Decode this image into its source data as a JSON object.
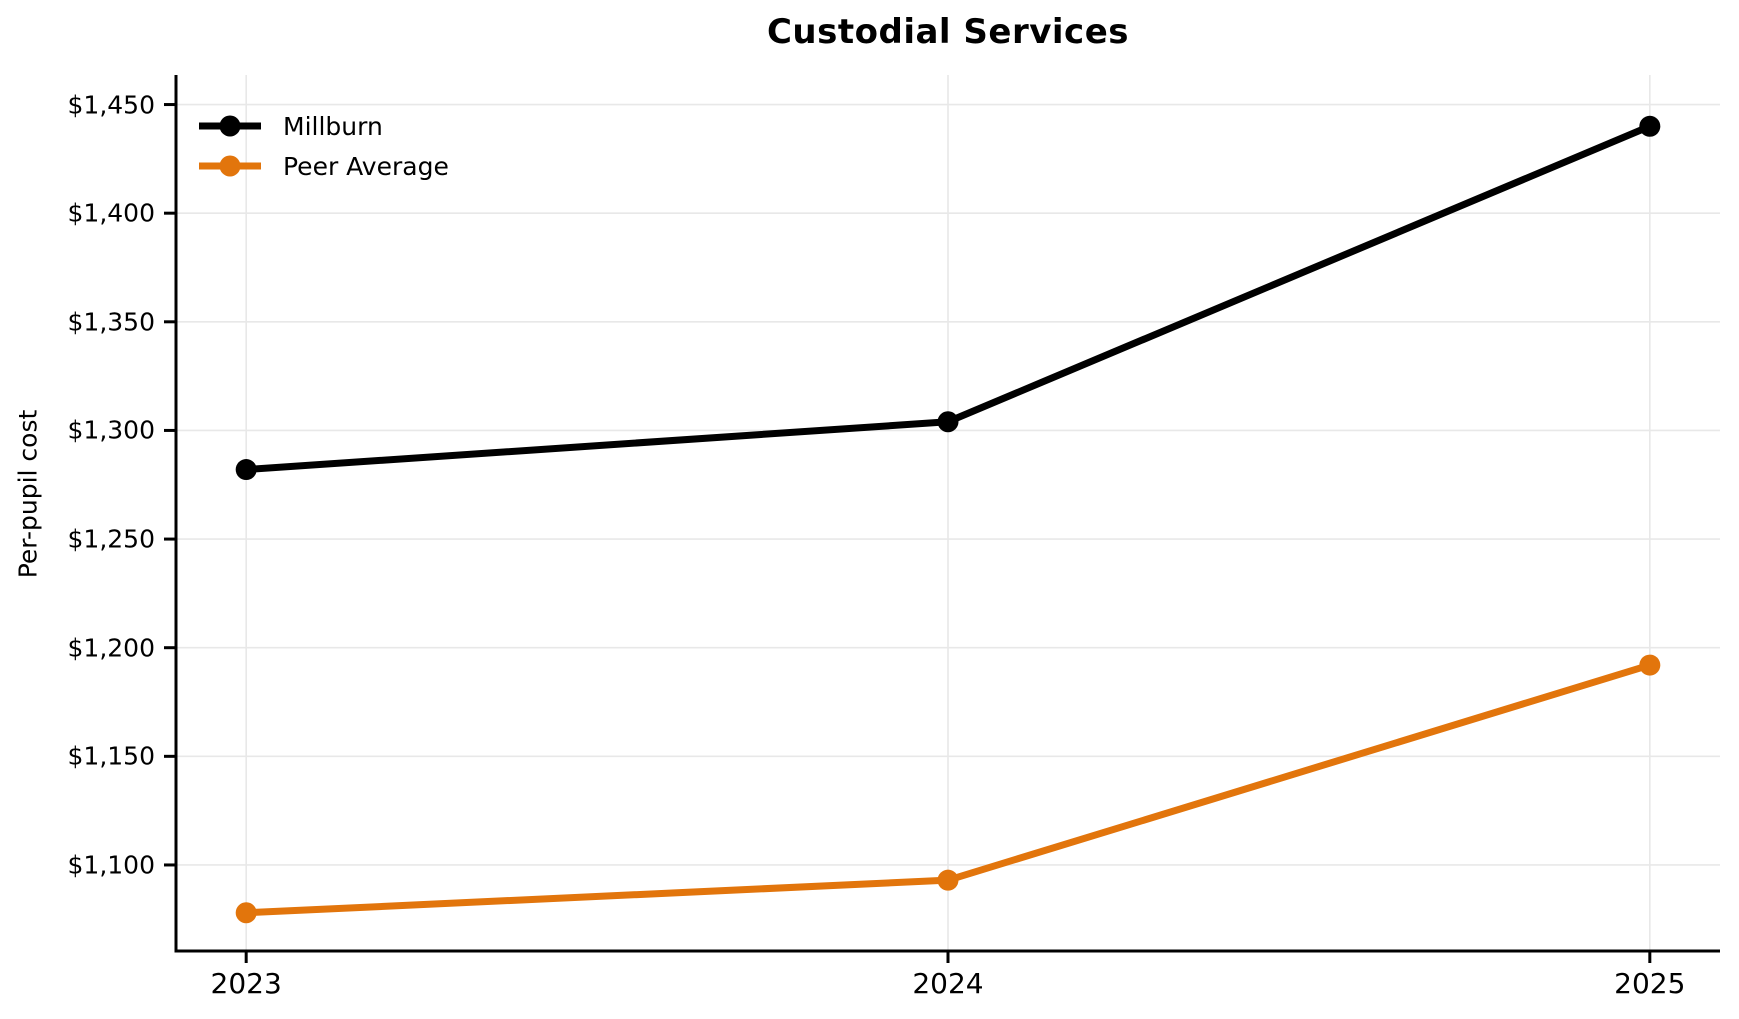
{
  "title": "Custodial Services",
  "chart_data": {
    "type": "line",
    "title": "Custodial Services",
    "xlabel": "",
    "ylabel": "Per-pupil cost",
    "categories": [
      2023,
      2024,
      2025
    ],
    "x_tick_labels": [
      "2023",
      "2024",
      "2025"
    ],
    "series": [
      {
        "name": "Millburn",
        "color": "#000000",
        "values": [
          1282,
          1304,
          1440
        ]
      },
      {
        "name": "Peer Average",
        "color": "#e2750c",
        "values": [
          1078,
          1093,
          1192
        ]
      }
    ],
    "y_ticks": [
      1100,
      1150,
      1200,
      1250,
      1300,
      1350,
      1400,
      1450
    ],
    "y_tick_labels": [
      "$1,100",
      "$1,150",
      "$1,200",
      "$1,250",
      "$1,300",
      "$1,350",
      "$1,400",
      "$1,450"
    ],
    "ylim": [
      1060.4,
      1463.6
    ],
    "xlim": [
      2022.9,
      2025.1
    ],
    "grid": true,
    "legend_position": "upper-left",
    "colors": {
      "grid": "#e8e8e8",
      "axis": "#000000",
      "text": "#000000",
      "background": "#ffffff"
    }
  }
}
